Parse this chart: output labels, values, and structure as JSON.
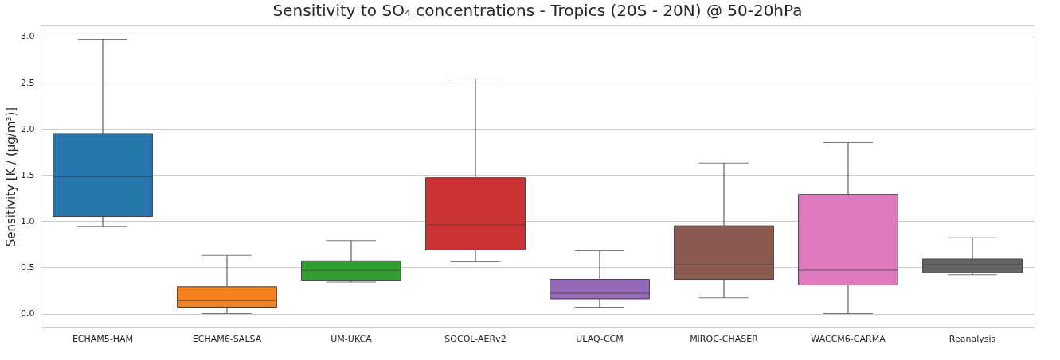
{
  "chart_data": {
    "type": "box",
    "title": "Sensitivity to SO₄ concentrations - Tropics (20S - 20N) @ 50-20hPa",
    "ylabel": "Sensitivity [K / (µg/m³)]",
    "categories": [
      "ECHAM5-HAM",
      "ECHAM6-SALSA",
      "UM-UKCA",
      "SOCOL-AERv2",
      "ULAQ-CCM",
      "MIROC-CHASER",
      "WACCM6-CARMA",
      "Reanalysis"
    ],
    "colors": [
      "#2776ae",
      "#f58020",
      "#339c33",
      "#cc3233",
      "#9568b8",
      "#8b5b51",
      "#dd7abd",
      "#646464"
    ],
    "boxes": [
      {
        "low": 0.94,
        "q1": 1.05,
        "median": 1.48,
        "q3": 1.95,
        "high": 2.97
      },
      {
        "low": 0.0,
        "q1": 0.07,
        "median": 0.14,
        "q3": 0.29,
        "high": 0.63
      },
      {
        "low": 0.34,
        "q1": 0.36,
        "median": 0.47,
        "q3": 0.57,
        "high": 0.79
      },
      {
        "low": 0.56,
        "q1": 0.69,
        "median": 0.96,
        "q3": 1.47,
        "high": 2.54
      },
      {
        "low": 0.07,
        "q1": 0.16,
        "median": 0.22,
        "q3": 0.37,
        "high": 0.68
      },
      {
        "low": 0.17,
        "q1": 0.37,
        "median": 0.53,
        "q3": 0.95,
        "high": 1.63
      },
      {
        "low": 0.0,
        "q1": 0.31,
        "median": 0.47,
        "q3": 1.29,
        "high": 1.85
      },
      {
        "low": 0.42,
        "q1": 0.44,
        "median": 0.53,
        "q3": 0.59,
        "high": 0.82
      }
    ],
    "ylim": [
      -0.15,
      3.12
    ],
    "yticks": [
      {
        "value": 0,
        "label": "0.0"
      },
      0.5,
      {
        "value": 1,
        "label": "1.0"
      },
      1.5,
      {
        "value": 2,
        "label": "2.0"
      },
      2.5,
      {
        "value": 3,
        "label": "3.0"
      }
    ],
    "grid": "y"
  }
}
